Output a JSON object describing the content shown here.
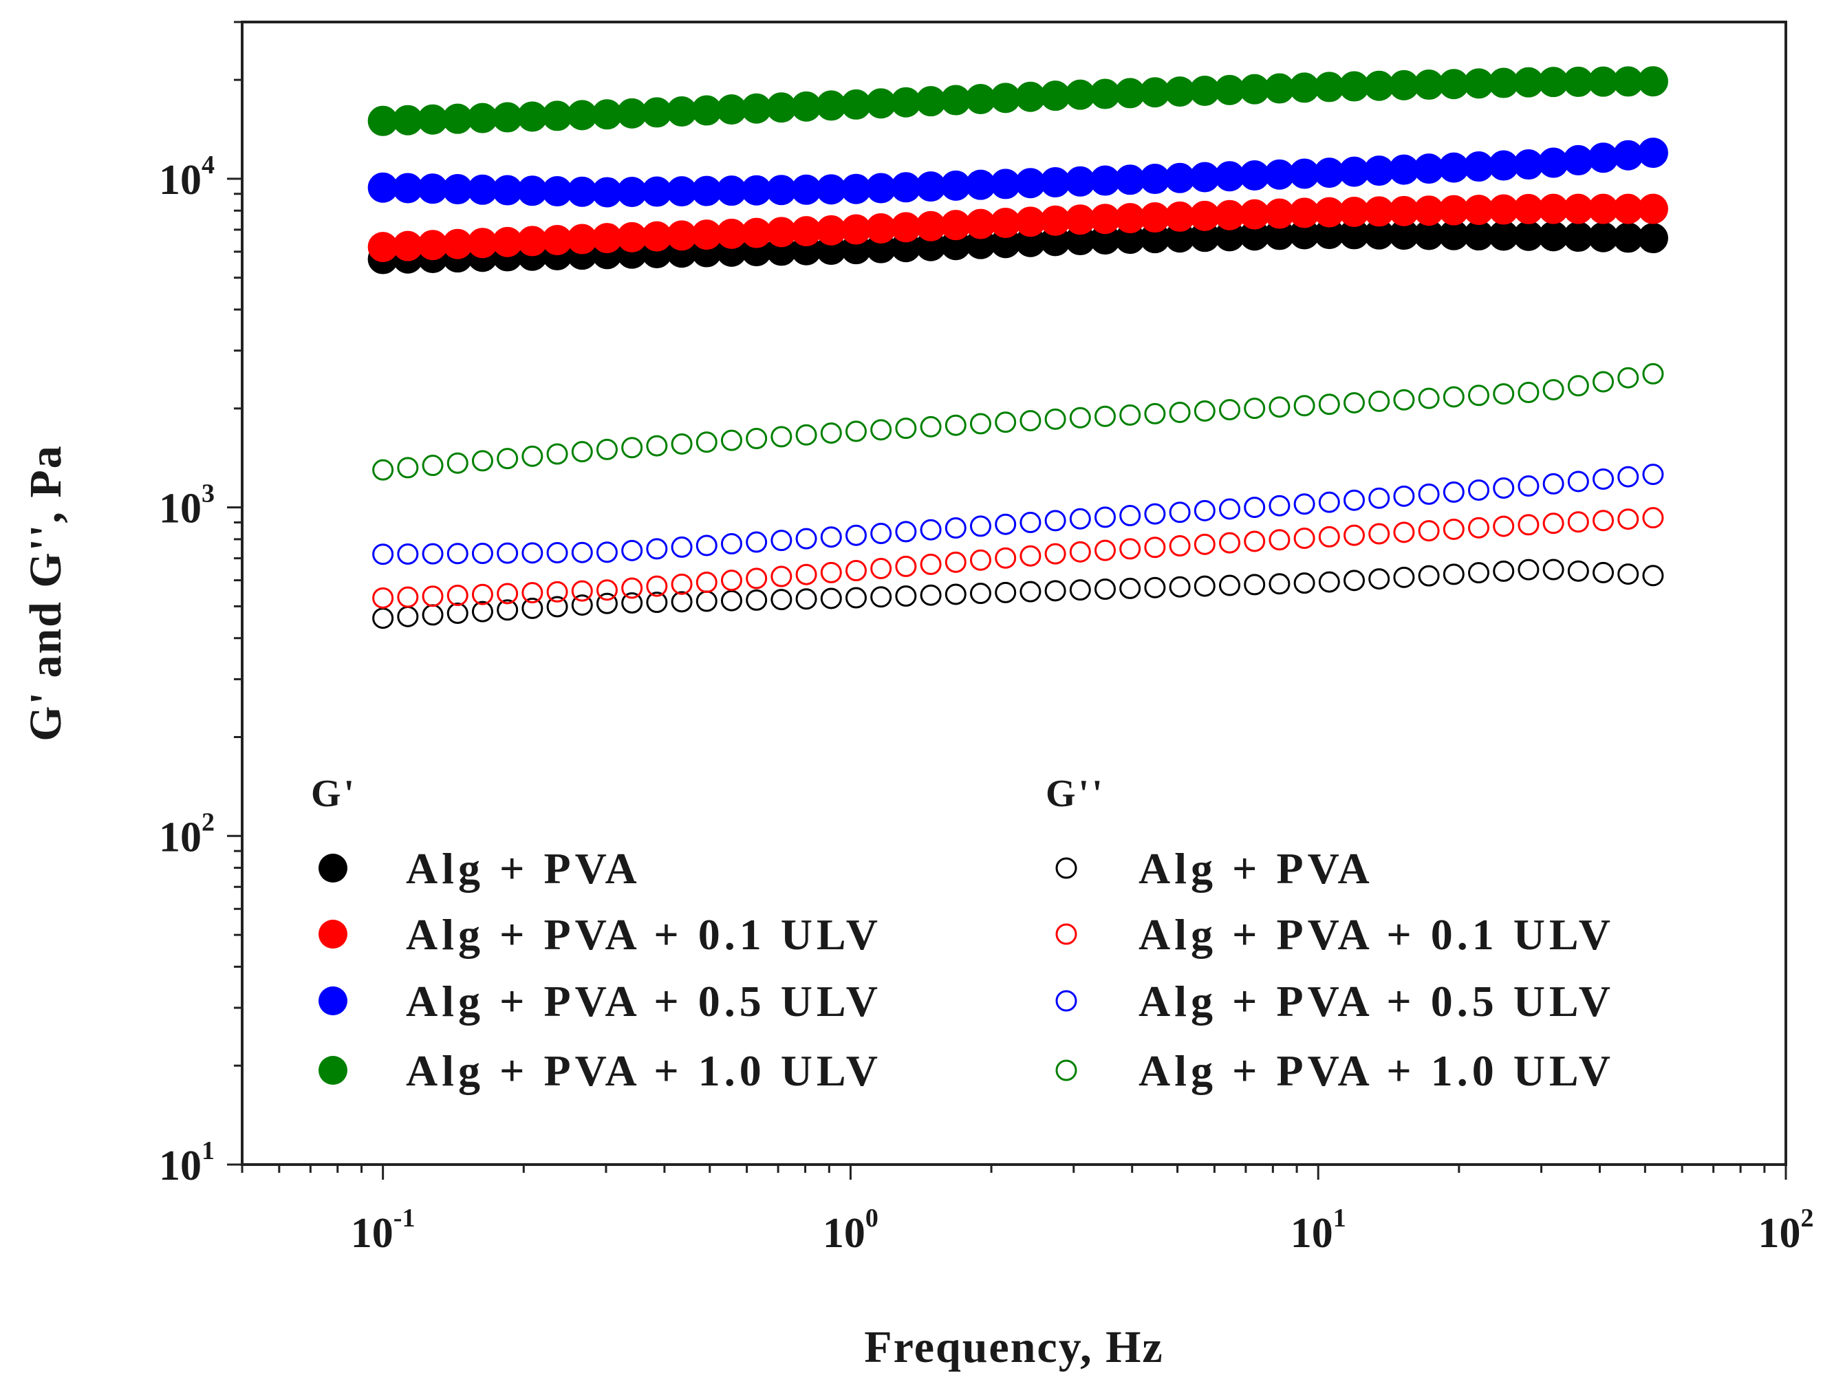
{
  "chart_data": {
    "type": "scatter",
    "xscale": "log",
    "yscale": "log",
    "xlabel": "Frequency, Hz",
    "ylabel": "G' and G'', Pa",
    "xlim": [
      0.05,
      100
    ],
    "ylim": [
      10,
      30000
    ],
    "xticks": [
      {
        "base": "10",
        "exp": "-1",
        "value": 0.1
      },
      {
        "base": "10",
        "exp": "0",
        "value": 1
      },
      {
        "base": "10",
        "exp": "1",
        "value": 10
      },
      {
        "base": "10",
        "exp": "2",
        "value": 100
      }
    ],
    "yticks": [
      {
        "base": "10",
        "exp": "1",
        "value": 10
      },
      {
        "base": "10",
        "exp": "2",
        "value": 100
      },
      {
        "base": "10",
        "exp": "3",
        "value": 1000
      },
      {
        "base": "10",
        "exp": "4",
        "value": 10000
      }
    ],
    "x_range": [
      0.1,
      52
    ],
    "n_points": 52,
    "legend": {
      "placement": "lower-left",
      "group_headings": [
        "G'",
        "G''"
      ]
    },
    "series": [
      {
        "name": "Alg + PVA",
        "group": "G'",
        "filled": true,
        "color": "#000000",
        "x": [
          0.1,
          0.3,
          1,
          3,
          10,
          30,
          52
        ],
        "y": [
          5700,
          5900,
          6100,
          6500,
          6800,
          6700,
          6600
        ]
      },
      {
        "name": "Alg + PVA + 0.1 ULV",
        "group": "G'",
        "filled": true,
        "color": "#ff0000",
        "x": [
          0.1,
          0.3,
          1,
          3,
          10,
          30,
          52
        ],
        "y": [
          6200,
          6600,
          7000,
          7500,
          7900,
          8100,
          8100
        ]
      },
      {
        "name": "Alg + PVA + 0.5 ULV",
        "group": "G'",
        "filled": true,
        "color": "#0000ff",
        "x": [
          0.1,
          0.3,
          1,
          3,
          10,
          30,
          52
        ],
        "y": [
          9400,
          9100,
          9300,
          9800,
          10400,
          11100,
          12000
        ]
      },
      {
        "name": "Alg + PVA + 1.0 ULV",
        "group": "G'",
        "filled": true,
        "color": "#008000",
        "x": [
          0.1,
          0.3,
          1,
          3,
          10,
          30,
          52
        ],
        "y": [
          15000,
          15700,
          16800,
          18000,
          19000,
          19700,
          19800
        ]
      },
      {
        "name": "Alg + PVA",
        "group": "G''",
        "filled": false,
        "color": "#000000",
        "x": [
          0.1,
          0.3,
          1,
          3,
          10,
          30,
          52
        ],
        "y": [
          460,
          510,
          530,
          560,
          590,
          650,
          620
        ]
      },
      {
        "name": "Alg + PVA + 0.1 ULV",
        "group": "G''",
        "filled": false,
        "color": "#ff0000",
        "x": [
          0.1,
          0.3,
          1,
          3,
          10,
          30,
          52
        ],
        "y": [
          530,
          560,
          640,
          730,
          810,
          890,
          930
        ]
      },
      {
        "name": "Alg + PVA + 0.5 ULV",
        "group": "G''",
        "filled": false,
        "color": "#0000ff",
        "x": [
          0.1,
          0.3,
          1,
          3,
          10,
          30,
          52
        ],
        "y": [
          720,
          730,
          820,
          920,
          1030,
          1170,
          1260
        ]
      },
      {
        "name": "Alg + PVA + 1.0 ULV",
        "group": "G''",
        "filled": false,
        "color": "#008000",
        "x": [
          0.1,
          0.3,
          1,
          3,
          10,
          30,
          52
        ],
        "y": [
          1300,
          1500,
          1700,
          1870,
          2050,
          2250,
          2550
        ]
      }
    ]
  }
}
